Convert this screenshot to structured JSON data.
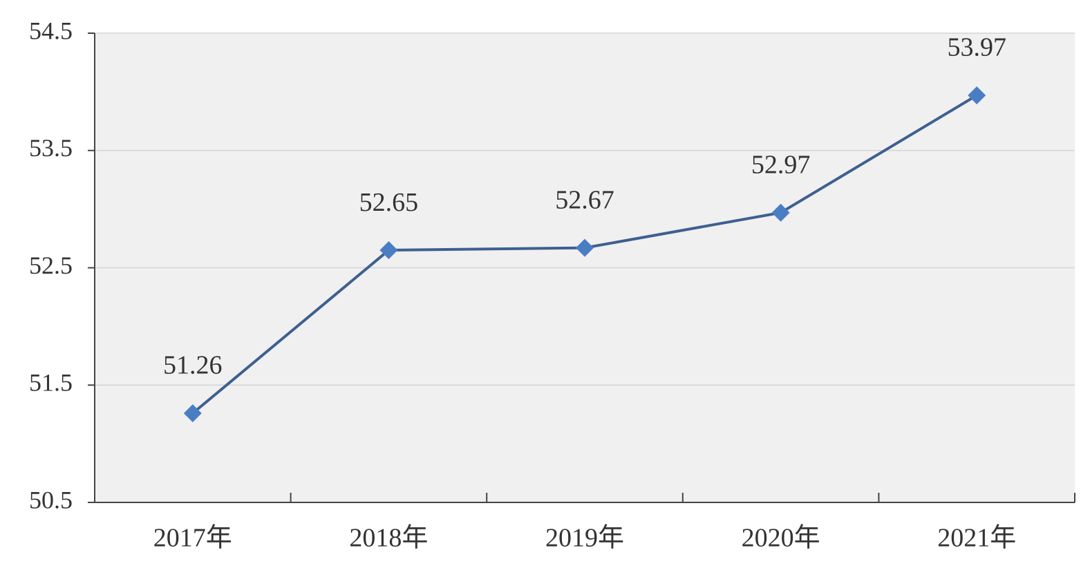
{
  "chart_data": {
    "type": "line",
    "categories": [
      "2017年",
      "2018年",
      "2019年",
      "2020年",
      "2021年"
    ],
    "values": [
      51.26,
      52.65,
      52.67,
      52.97,
      53.97
    ],
    "color": "#4a7ec4",
    "line_color": "#3e5f90",
    "ylim": [
      50.5,
      54.5
    ],
    "yticks": [
      50.5,
      51.5,
      52.5,
      53.5,
      54.5
    ],
    "grid": true
  }
}
